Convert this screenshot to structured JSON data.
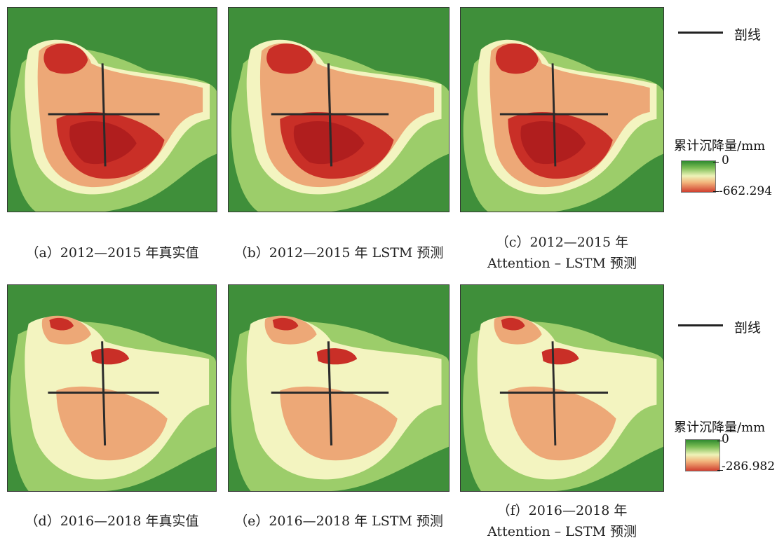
{
  "panels": [
    {
      "id": "a",
      "caption_line1": "（a）2012—2015 年真实值",
      "caption_line2": "",
      "variant": "strong"
    },
    {
      "id": "b",
      "caption_line1": "（b）2012—2015 年 LSTM 预测",
      "caption_line2": "",
      "variant": "strong"
    },
    {
      "id": "c",
      "caption_line1": "（c）2012—2015 年",
      "caption_line2": "Attention – LSTM 预测",
      "variant": "strong"
    },
    {
      "id": "d",
      "caption_line1": "（d）2016—2018 年真实值",
      "caption_line2": "",
      "variant": "weak"
    },
    {
      "id": "e",
      "caption_line1": "（e）2016—2018 年 LSTM 预测",
      "caption_line2": "",
      "variant": "weak"
    },
    {
      "id": "f",
      "caption_line1": "（f）2016—2018 年",
      "caption_line2": "Attention – LSTM 预测",
      "variant": "weak"
    }
  ],
  "legends": [
    {
      "profile_label": "剖线",
      "title": "累计沉降量/mm",
      "max_label": "0",
      "min_label": "-662.294"
    },
    {
      "profile_label": "剖线",
      "title": "累计沉降量/mm",
      "max_label": "0",
      "min_label": "-286.982"
    }
  ],
  "colors": {
    "green_dark": "#3f8f3a",
    "green_light": "#9ccd6a",
    "cream": "#f3f4c0",
    "orange": "#eda877",
    "red": "#c92f27",
    "dark_red": "#b01e1e",
    "line": "#2b2b2b"
  }
}
